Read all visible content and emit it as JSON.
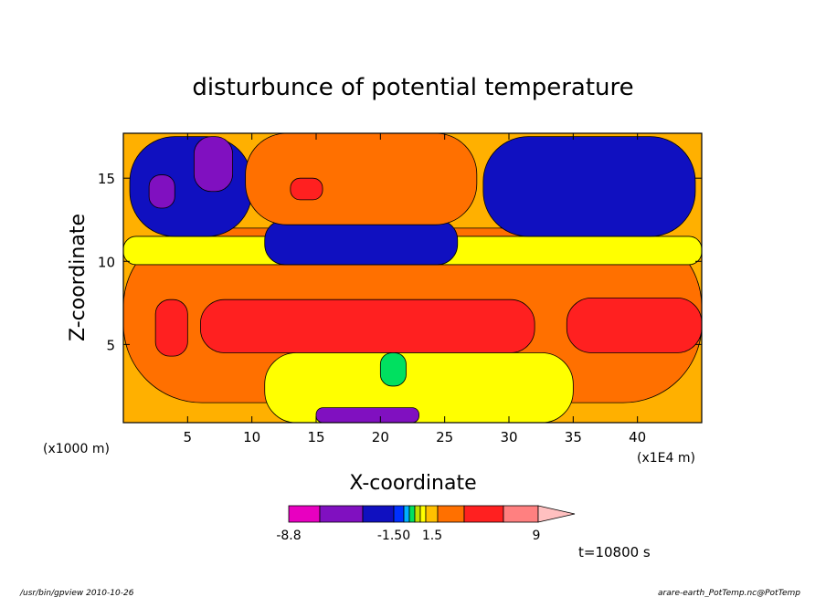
{
  "chart_data": {
    "type": "heatmap",
    "title": "disturbunce of potential temperature",
    "xlabel": "X-coordinate",
    "ylabel": "Z-coordinate",
    "x_unit_left": "(x1000 m)",
    "x_unit_right": "(x1E4 m)",
    "xlim": [
      0,
      45
    ],
    "ylim": [
      0.3,
      17.7
    ],
    "x_ticks": [
      "5",
      "10",
      "15",
      "20",
      "25",
      "30",
      "35",
      "40"
    ],
    "x_tick_values": [
      5,
      10,
      15,
      20,
      25,
      30,
      35,
      40
    ],
    "y_ticks": [
      "5",
      "10",
      "15"
    ],
    "y_tick_values": [
      5,
      10,
      15
    ],
    "colorbar": {
      "labels": [
        "-8.8",
        "-1.50",
        "1.5",
        "9"
      ],
      "colors": [
        "#e800c0",
        "#8010c0",
        "#1010c0",
        "#0030ff",
        "#00b0ff",
        "#00e060",
        "#c0e000",
        "#ffff00",
        "#ffc000",
        "#ff7000",
        "#ff2020",
        "#ff8080",
        "#ffc0c0"
      ]
    },
    "regions": [
      {
        "level": "orange",
        "x": [
          0,
          45
        ],
        "z": [
          1.5,
          12
        ]
      },
      {
        "level": "red",
        "x": [
          2.5,
          5
        ],
        "z": [
          4.3,
          7.7
        ]
      },
      {
        "level": "red",
        "x": [
          6,
          32
        ],
        "z": [
          4.5,
          7.7
        ]
      },
      {
        "level": "red",
        "x": [
          34.5,
          45
        ],
        "z": [
          4.5,
          7.8
        ]
      },
      {
        "level": "yellow",
        "x": [
          0,
          45
        ],
        "z": [
          9.8,
          11.5
        ]
      },
      {
        "level": "blue",
        "x": [
          11,
          26
        ],
        "z": [
          9.8,
          12.5
        ]
      },
      {
        "level": "blue",
        "x": [
          0.5,
          10
        ],
        "z": [
          11.5,
          17.5
        ]
      },
      {
        "level": "blue",
        "x": [
          28,
          44.5
        ],
        "z": [
          11.5,
          17.5
        ]
      },
      {
        "level": "purple",
        "x": [
          2,
          4
        ],
        "z": [
          13.2,
          15.2
        ]
      },
      {
        "level": "purple",
        "x": [
          5.5,
          8.5
        ],
        "z": [
          14.2,
          17.5
        ]
      },
      {
        "level": "orange",
        "x": [
          9.5,
          27.5
        ],
        "z": [
          12.2,
          17.7
        ]
      },
      {
        "level": "red",
        "x": [
          13,
          15.5
        ],
        "z": [
          13.7,
          15
        ]
      },
      {
        "level": "yellow",
        "x": [
          11,
          35
        ],
        "z": [
          0.3,
          4.5
        ]
      },
      {
        "level": "green",
        "x": [
          20,
          22
        ],
        "z": [
          2.5,
          4.5
        ]
      },
      {
        "level": "purple",
        "x": [
          15,
          23
        ],
        "z": [
          0.3,
          1.2
        ]
      }
    ]
  },
  "footer": {
    "left": "/usr/bin/gpview  2010-10-26",
    "right": "arare-earth_PotTemp.nc@PotTemp",
    "time": "t=10800 s"
  }
}
